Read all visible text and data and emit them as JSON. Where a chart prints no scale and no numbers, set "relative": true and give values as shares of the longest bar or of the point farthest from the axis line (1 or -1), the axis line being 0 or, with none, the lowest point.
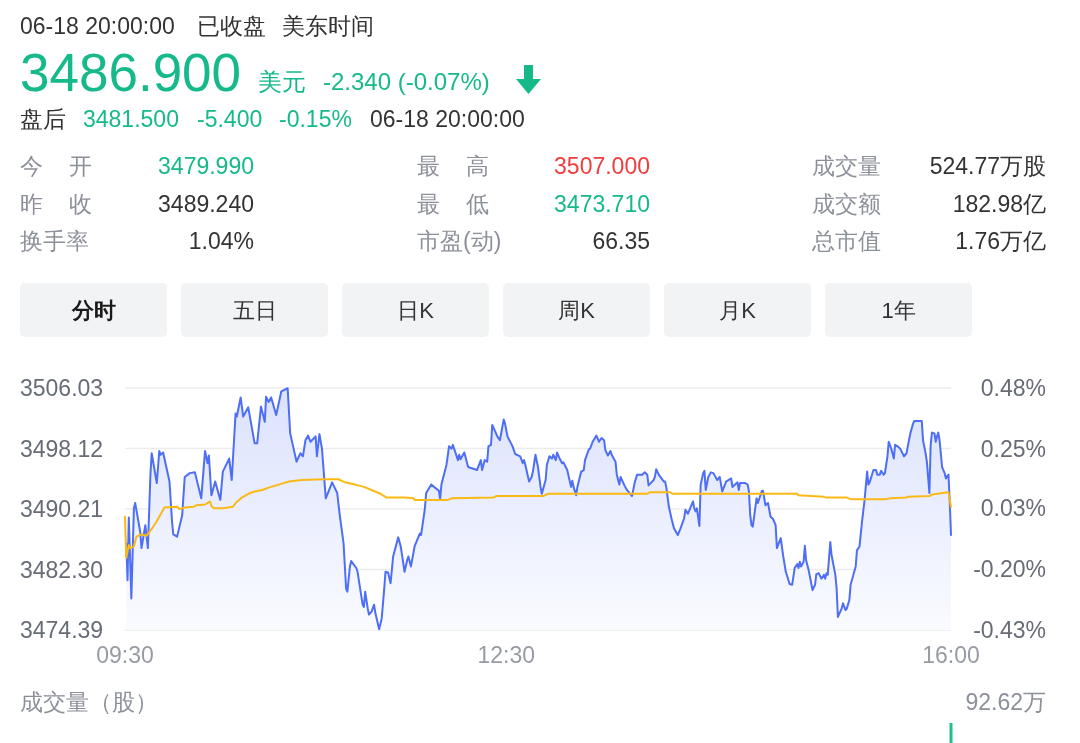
{
  "chart_data": [
    {
      "type": "other",
      "annotations": [
        "06-18 20:00:00",
        "已收盘",
        "美东时间",
        "3486.900",
        "美元",
        "-2.340 (-0.07%)",
        "盘后",
        "3481.500",
        "-5.400",
        "-0.15%",
        "06-18 20:00:00",
        "今开",
        "3479.990",
        "最高",
        "3507.000",
        "成交量",
        "524.77万股",
        "昨收",
        "3489.240",
        "最低",
        "3473.710",
        "成交额",
        "182.98亿",
        "换手率",
        "1.04%",
        "市盈(动)",
        "66.35",
        "总市值",
        "1.76万亿",
        "分时",
        "五日",
        "日K",
        "周K",
        "月K",
        "1年"
      ]
    },
    {
      "type": "line",
      "xlim": [
        9.5,
        16
      ],
      "xticks": [
        {
          "value": 9.5,
          "label": "09:30"
        },
        {
          "value": 12.5,
          "label": "12:30"
        },
        {
          "value": 16,
          "label": "16:00"
        }
      ],
      "ylim": [
        3474.39,
        3506.03
      ],
      "yticks": [
        3474.39,
        {
          "value": 3482.3,
          "label": "3482.30"
        },
        3490.21,
        3498.12,
        3506.03
      ],
      "y2lim": [
        -0.43,
        0.48
      ],
      "y2ticks": [
        {
          "value": -0.43,
          "label": "-0.43%"
        },
        {
          "value": -0.2,
          "label": "-0.20%"
        },
        {
          "value": 0.03,
          "label": "0.03%"
        },
        {
          "value": 0.25,
          "label": "0.25%"
        },
        {
          "value": 0.48,
          "label": "0.48%"
        }
      ],
      "grid": "y",
      "series": [
        {
          "type": "area",
          "color": "#4d6ef5",
          "x": [
            9.51,
            9.52,
            9.53,
            9.55,
            9.57,
            9.58,
            9.62,
            9.63,
            9.66,
            9.68,
            9.7,
            9.71,
            9.75,
            9.77,
            9.78,
            9.8,
            9.85,
            9.87,
            9.88,
            9.91,
            9.95,
            9.97,
            10.01,
            10.05,
            10.1,
            10.13,
            10.15,
            10.16,
            10.18,
            10.21,
            10.25,
            10.27,
            10.32,
            10.34,
            10.37,
            10.38,
            10.41,
            10.43,
            10.47,
            10.52,
            10.54,
            10.57,
            10.6,
            10.61,
            10.63,
            10.65,
            10.69,
            10.73,
            10.78,
            10.8,
            10.85,
            10.88,
            10.9,
            10.92,
            10.94,
            10.96,
            11.0,
            11.01,
            11.03,
            11.05,
            11.08,
            11.13,
            11.17,
            11.19,
            11.22,
            11.24,
            11.25,
            11.27,
            11.28,
            11.32,
            11.33,
            11.37,
            11.38,
            11.39,
            11.41,
            11.42,
            11.44,
            11.46,
            11.47,
            11.5,
            11.52,
            11.54,
            11.55,
            11.57,
            11.59,
            11.61,
            11.65,
            11.67,
            11.7,
            11.72,
            11.73,
            11.75,
            11.78,
            11.82,
            11.83,
            11.86,
            11.87,
            11.91,
            11.97,
            11.98,
            11.99,
            12.03,
            12.05,
            12.07,
            12.08,
            12.12,
            12.13,
            12.14,
            12.17,
            12.2,
            12.27,
            12.3,
            12.31,
            12.33,
            12.35,
            12.36,
            12.38,
            12.39,
            12.43,
            12.45,
            12.48,
            12.49,
            12.51,
            12.55,
            12.57,
            12.61,
            12.63,
            12.64,
            12.65,
            12.68,
            12.7,
            12.71,
            12.73,
            12.75,
            12.77,
            12.78,
            12.81,
            12.82,
            12.84,
            12.86,
            12.87,
            12.89,
            12.9,
            12.92,
            12.94,
            12.95,
            12.98,
            13.01,
            13.02,
            13.03,
            13.05,
            13.06,
            13.09,
            13.11,
            13.12,
            13.15,
            13.16,
            13.18,
            13.21,
            13.23,
            13.25,
            13.27,
            13.28,
            13.3,
            13.32,
            13.33,
            13.36,
            13.37,
            13.39,
            13.4,
            13.43,
            13.45,
            13.49,
            13.51,
            13.53,
            13.57,
            13.59,
            13.61,
            13.62,
            13.66,
            13.67,
            13.68,
            13.7,
            13.74,
            13.75,
            13.76,
            13.78,
            13.8,
            13.82,
            13.85,
            13.87,
            13.9,
            13.91,
            13.93,
            13.97,
            13.98,
            13.99,
            14.0,
            14.02,
            14.03,
            14.05,
            14.06,
            14.07,
            14.09,
            14.11,
            14.13,
            14.16,
            14.18,
            14.2,
            14.23,
            14.27,
            14.28,
            14.32,
            14.33,
            14.34,
            14.38,
            14.4,
            14.41,
            14.42,
            14.43,
            14.44,
            14.47,
            14.48,
            14.51,
            14.52,
            14.54,
            14.56,
            14.58,
            14.6,
            14.62,
            14.63,
            14.66,
            14.68,
            14.7,
            14.73,
            14.75,
            14.77,
            14.79,
            14.8,
            14.81,
            14.82,
            14.84,
            14.85,
            14.86,
            14.88,
            14.9,
            14.91,
            14.93,
            14.94,
            14.96,
            14.98,
            15.0,
            15.01,
            15.02,
            15.03,
            15.05,
            15.06,
            15.09,
            15.1,
            15.11,
            15.14,
            15.15,
            15.17,
            15.18,
            15.2,
            15.21,
            15.25,
            15.26,
            15.28,
            15.3,
            15.32,
            15.34,
            15.35,
            15.36,
            15.39,
            15.41,
            15.42,
            15.44,
            15.45,
            15.47,
            15.48,
            15.5,
            15.51,
            15.53,
            15.55,
            15.56,
            15.58,
            15.6,
            15.63,
            15.65,
            15.66,
            15.68,
            15.7,
            15.71,
            15.77,
            15.78,
            15.8,
            15.81,
            15.83,
            15.84,
            15.85,
            15.87,
            15.88,
            15.89,
            15.9,
            15.91,
            15.93,
            15.95,
            15.96,
            15.97,
            15.98,
            15.99,
            16.0
          ],
          "values": [
            3485.7,
            3480.9,
            3489.1,
            3478.5,
            3490.3,
            3491.0,
            3487.2,
            3485.1,
            3488.1,
            3485.1,
            3494.7,
            3497.5,
            3493.6,
            3497.8,
            3497.3,
            3497.6,
            3493.8,
            3488.6,
            3486.9,
            3486.6,
            3489.4,
            3494.4,
            3494.9,
            3495.0,
            3491.6,
            3497.8,
            3496.2,
            3497.2,
            3492.0,
            3493.8,
            3491.4,
            3495.1,
            3496.8,
            3494.0,
            3502.7,
            3502.3,
            3504.8,
            3502.3,
            3503.5,
            3498.8,
            3498.8,
            3503.6,
            3501.6,
            3504.9,
            3504.2,
            3504.8,
            3502.5,
            3505.6,
            3506.0,
            3500.1,
            3496.4,
            3497.5,
            3497.1,
            3499.2,
            3499.8,
            3499.0,
            3499.7,
            3497.1,
            3500.0,
            3498.1,
            3491.6,
            3493.7,
            3492.3,
            3489.4,
            3485.7,
            3479.8,
            3479.4,
            3482.7,
            3483.4,
            3482.5,
            3482.0,
            3477.7,
            3477.4,
            3479.4,
            3477.2,
            3476.4,
            3476.8,
            3477.7,
            3476.6,
            3474.5,
            3475.9,
            3479.8,
            3482.0,
            3481.9,
            3480.5,
            3484.0,
            3486.5,
            3485.3,
            3482.0,
            3483.5,
            3484.0,
            3482.7,
            3485.4,
            3487.0,
            3486.8,
            3490.3,
            3492.3,
            3493.4,
            3492.6,
            3491.5,
            3493.4,
            3496.0,
            3498.4,
            3498.1,
            3498.6,
            3496.6,
            3497.3,
            3496.7,
            3497.6,
            3495.7,
            3495.3,
            3496.6,
            3495.3,
            3496.6,
            3496.4,
            3498.4,
            3498.6,
            3501.2,
            3499.7,
            3499.2,
            3501.9,
            3501.4,
            3499.7,
            3498.4,
            3497.4,
            3497.1,
            3496.2,
            3496.6,
            3496.0,
            3493.8,
            3494.4,
            3495.1,
            3497.3,
            3495.7,
            3493.1,
            3492.2,
            3494.0,
            3496.0,
            3497.1,
            3496.8,
            3497.3,
            3496.6,
            3497.6,
            3496.8,
            3496.2,
            3496.3,
            3495.3,
            3493.1,
            3493.9,
            3493.1,
            3492.0,
            3493.1,
            3495.1,
            3495.3,
            3496.6,
            3498.0,
            3498.1,
            3499.0,
            3499.8,
            3499.0,
            3499.5,
            3499.2,
            3497.9,
            3497.2,
            3497.8,
            3497.3,
            3496.4,
            3494.7,
            3493.4,
            3494.4,
            3493.3,
            3492.7,
            3491.9,
            3493.6,
            3494.7,
            3494.7,
            3495.0,
            3494.7,
            3493.3,
            3494.0,
            3494.4,
            3495.4,
            3494.7,
            3493.8,
            3493.8,
            3493.0,
            3490.5,
            3489.0,
            3487.7,
            3486.8,
            3487.6,
            3489.0,
            3490.1,
            3489.6,
            3491.2,
            3490.3,
            3489.9,
            3490.3,
            3488.0,
            3493.4,
            3494.9,
            3495.2,
            3492.7,
            3494.4,
            3495.0,
            3494.9,
            3494.0,
            3494.4,
            3492.5,
            3493.8,
            3494.2,
            3493.1,
            3493.7,
            3492.7,
            3493.6,
            3493.6,
            3493.4,
            3492.5,
            3489.4,
            3488.1,
            3487.9,
            3491.6,
            3491.0,
            3492.5,
            3492.6,
            3490.7,
            3491.0,
            3489.2,
            3488.9,
            3488.1,
            3485.1,
            3486.4,
            3484.0,
            3482.0,
            3480.4,
            3480.3,
            3482.5,
            3483.0,
            3482.5,
            3483.3,
            3482.7,
            3483.3,
            3485.4,
            3483.5,
            3482.2,
            3480.5,
            3479.6,
            3480.3,
            3481.7,
            3481.8,
            3481.1,
            3481.6,
            3481.1,
            3481.8,
            3481.6,
            3485.9,
            3484.2,
            3481.6,
            3479.8,
            3476.1,
            3477.2,
            3477.9,
            3477.0,
            3477.2,
            3478.3,
            3480.3,
            3482.7,
            3484.8,
            3485.3,
            3488.6,
            3491.4,
            3495.1,
            3493.4,
            3493.7,
            3495.3,
            3495.3,
            3494.7,
            3494.7,
            3495.2,
            3494.7,
            3494.9,
            3497.1,
            3499.0,
            3498.1,
            3496.8,
            3498.6,
            3498.4,
            3498.1,
            3497.1,
            3497.5,
            3498.4,
            3500.1,
            3501.3,
            3501.7,
            3501.7,
            3499.2,
            3497.5,
            3496.4,
            3492.3,
            3498.6,
            3500.2,
            3500.1,
            3499.0,
            3499.7,
            3500.2,
            3499.2,
            3495.7,
            3494.9,
            3494.2,
            3494.5,
            3494.7,
            3491.2,
            3486.8
          ]
        },
        {
          "color": "#fab915",
          "x": [
            9.5,
            9.51,
            9.53,
            9.54,
            9.57,
            9.59,
            9.63,
            9.67,
            9.71,
            9.75,
            9.81,
            9.91,
            9.93,
            9.97,
            10.04,
            10.06,
            10.13,
            10.17,
            10.18,
            10.2,
            10.27,
            10.35,
            10.37,
            10.42,
            10.47,
            10.52,
            10.58,
            10.63,
            10.71,
            10.79,
            10.89,
            11.07,
            11.18,
            11.23,
            11.31,
            11.38,
            11.44,
            11.51,
            11.56,
            11.7,
            11.77,
            11.78,
            12.04,
            12.07,
            12.4,
            12.42,
            12.79,
            12.83,
            13.61,
            13.63,
            13.79,
            13.81,
            14.79,
            14.8,
            15.0,
            15.02,
            15.18,
            15.21,
            15.49,
            15.52,
            15.65,
            15.66,
            15.83,
            15.85,
            15.98,
            16.0
          ],
          "values": [
            3489.2,
            3483.8,
            3485.5,
            3485.1,
            3485.3,
            3486.6,
            3486.9,
            3486.7,
            3487.6,
            3488.6,
            3490.4,
            3490.5,
            3490.2,
            3490.4,
            3490.5,
            3490.7,
            3490.8,
            3491.2,
            3490.6,
            3490.3,
            3490.3,
            3490.5,
            3491.0,
            3491.7,
            3492.2,
            3492.5,
            3492.7,
            3493.0,
            3493.4,
            3493.8,
            3494.0,
            3494.1,
            3494.1,
            3493.7,
            3493.4,
            3493.1,
            3492.7,
            3492.2,
            3491.7,
            3491.7,
            3491.6,
            3491.4,
            3491.4,
            3491.6,
            3491.7,
            3491.9,
            3491.9,
            3492.2,
            3492.2,
            3492.4,
            3492.4,
            3492.2,
            3492.2,
            3492.0,
            3491.8,
            3491.7,
            3491.7,
            3491.5,
            3491.5,
            3491.6,
            3491.7,
            3491.8,
            3491.9,
            3492.1,
            3492.4,
            3490.5
          ]
        }
      ]
    },
    {
      "type": "bar",
      "relative": true,
      "ylabel": "成交量（股）",
      "x": [
        16
      ],
      "values": [
        1
      ],
      "color": "#1dbf8f",
      "xlim": [
        9.5,
        16
      ],
      "tick_labels": false,
      "annotations": [
        "92.62万"
      ]
    }
  ]
}
